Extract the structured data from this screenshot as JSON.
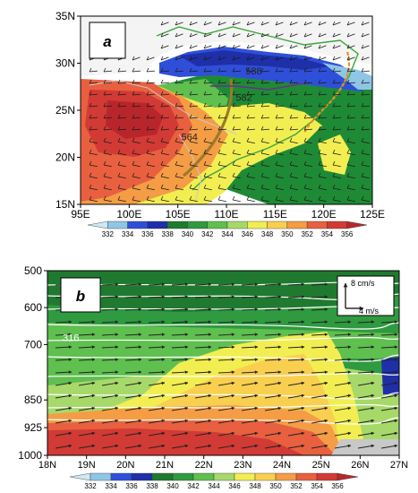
{
  "colors": {
    "scale": [
      "#cfe8f3",
      "#8fc6e6",
      "#2f4fd9",
      "#1f2fa8",
      "#1f7a2f",
      "#2f9a3f",
      "#5fbf4f",
      "#a6d96a",
      "#f2ee52",
      "#f9cf4f",
      "#f49d45",
      "#e8603f",
      "#d23a35",
      "#b8262b"
    ],
    "line_brown": "#9a7a2a",
    "line_orange": "#f08a24",
    "line_purple": "#6b2f8a",
    "border_gray": "#c8c8c8",
    "coast_green": "#3aa53a"
  },
  "chart_data": [
    {
      "panel_label": "a",
      "type": "heatmap",
      "x_ticks": [
        "95E",
        "100E",
        "105E",
        "110E",
        "115E",
        "120E",
        "125E"
      ],
      "y_ticks": [
        "15N",
        "20N",
        "25N",
        "30N",
        "35N"
      ],
      "xlim": [
        95,
        125
      ],
      "ylim": [
        15,
        35
      ],
      "contour_labels": [
        {
          "text": "588",
          "lon": 112.8,
          "lat": 28.8
        },
        {
          "text": "582",
          "lon": 111.8,
          "lat": 26.0
        },
        {
          "text": "564",
          "lon": 106.2,
          "lat": 21.8
        }
      ],
      "colorbar": {
        "ticks": [
          "332",
          "334",
          "336",
          "338",
          "340",
          "342",
          "344",
          "346",
          "348",
          "350",
          "352",
          "354",
          "356"
        ]
      }
    },
    {
      "panel_label": "b",
      "type": "heatmap",
      "x_ticks": [
        "18N",
        "19N",
        "20N",
        "21N",
        "22N",
        "23N",
        "24N",
        "25N",
        "26N",
        "27N"
      ],
      "y_ticks": [
        "500",
        "600",
        "700",
        "850",
        "925",
        "1000"
      ],
      "xlim": [
        18,
        27
      ],
      "ylim": [
        1000,
        500
      ],
      "contour_labels": [
        {
          "text": "316",
          "lat": 18.6,
          "p": 690
        }
      ],
      "reference_vectors": {
        "vertical": "8 cm/s",
        "horizontal": "4 m/s"
      },
      "colorbar": {
        "ticks": [
          "332",
          "334",
          "336",
          "338",
          "340",
          "342",
          "344",
          "346",
          "348",
          "350",
          "352",
          "354",
          "356"
        ]
      }
    }
  ]
}
